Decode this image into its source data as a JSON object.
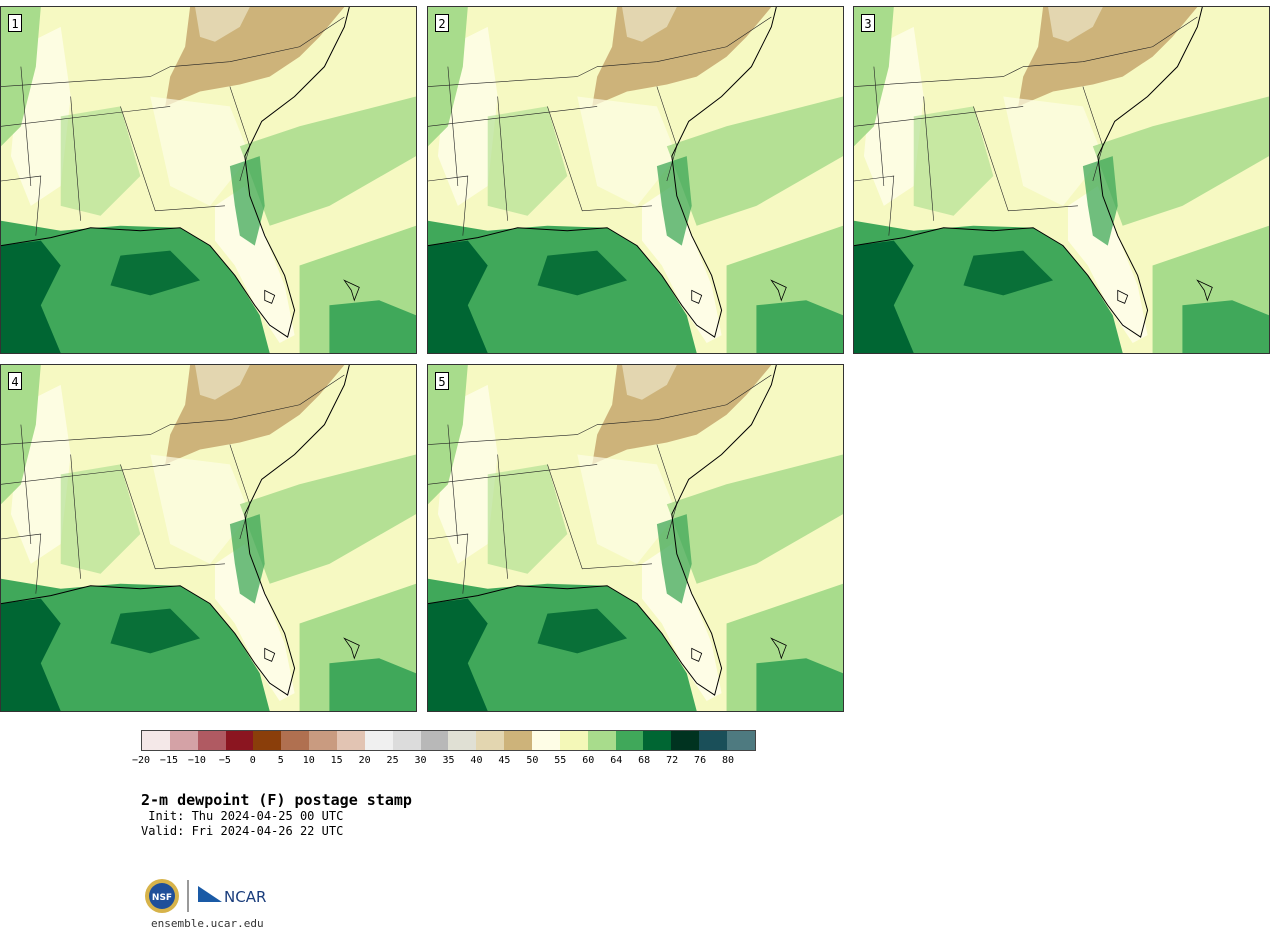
{
  "panels": [
    {
      "label": "1"
    },
    {
      "label": "2"
    },
    {
      "label": "3"
    },
    {
      "label": "4"
    },
    {
      "label": "5"
    }
  ],
  "colorbar": {
    "colors": [
      "#f4e8e8",
      "#d4a2a6",
      "#b05a62",
      "#8b1520",
      "#8a3e0a",
      "#b07050",
      "#c99b80",
      "#e2c4b3",
      "#f0f0f0",
      "#dcdcdc",
      "#b8b8b8",
      "#e0e0d4",
      "#e3d6b0",
      "#cdb37a",
      "#fefde6",
      "#f4f8b8",
      "#a8dc8c",
      "#40a85a",
      "#006633",
      "#003320",
      "#1a4f59",
      "#4e7a80"
    ],
    "ticks": [
      "−20",
      "−15",
      "−10",
      "−5",
      "0",
      "5",
      "10",
      "15",
      "20",
      "25",
      "30",
      "35",
      "40",
      "45",
      "50",
      "55",
      "60",
      "64",
      "68",
      "72",
      "76",
      "80"
    ]
  },
  "title": "2-m dewpoint (F) postage stamp",
  "init": " Init: Thu 2024-04-25 00 UTC",
  "valid": "Valid: Fri 2024-04-26 22 UTC",
  "logo": {
    "left_text": "NSF",
    "right_text": "NCAR"
  },
  "site": "ensemble.ucar.edu"
}
